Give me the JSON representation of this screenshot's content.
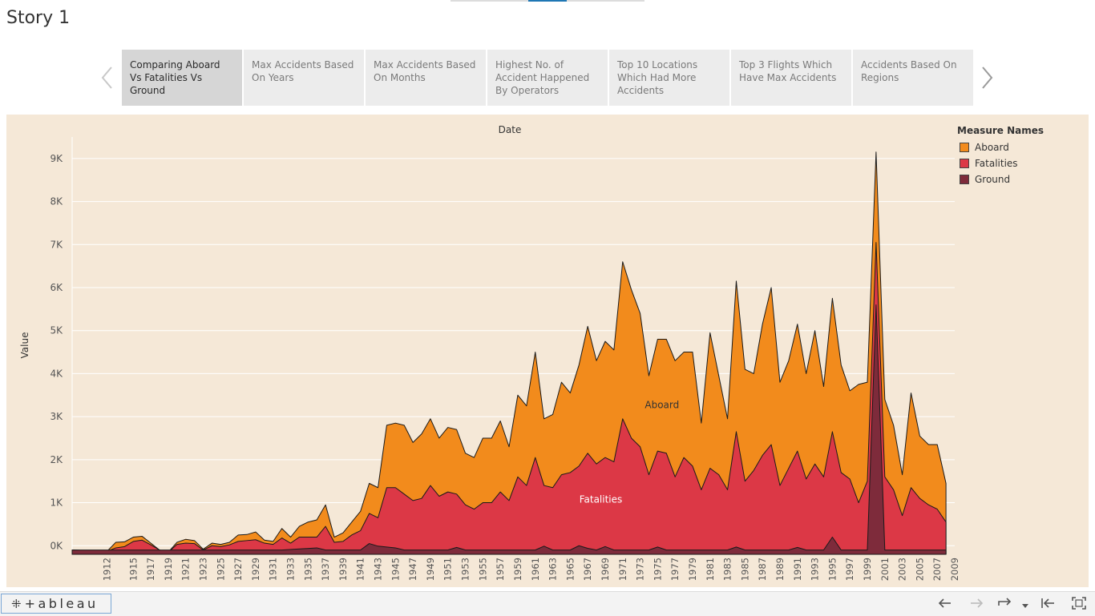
{
  "story": {
    "title": "Story 1",
    "points": [
      "Comparing Aboard Vs Fatalities Vs Ground",
      "Max Accidents Based On Years",
      "Max Accidents Based On Months",
      "Highest No. of Accident Happened  By Operators",
      "Top 10 Locations Which Had More Accidents",
      "Top 3 Flights Which Have Max Accidents",
      "Accidents Based On Regions"
    ],
    "active_index": 0
  },
  "footer": {
    "logo_text": "+ableau",
    "logo_mark": "⁜"
  },
  "chart_data": {
    "type": "area",
    "title": "Date",
    "xlabel": "",
    "ylabel": "Value",
    "xlim": [
      1908,
      2009
    ],
    "ylim": [
      -200,
      9500
    ],
    "y_ticks": [
      0,
      1000,
      2000,
      3000,
      4000,
      5000,
      6000,
      7000,
      8000,
      9000
    ],
    "y_tick_labels": [
      "0K",
      "1K",
      "2K",
      "3K",
      "4K",
      "5K",
      "6K",
      "7K",
      "8K",
      "9K"
    ],
    "x_ticks": [
      1912,
      1915,
      1917,
      1919,
      1921,
      1923,
      1925,
      1927,
      1929,
      1931,
      1933,
      1935,
      1937,
      1939,
      1941,
      1943,
      1945,
      1947,
      1949,
      1951,
      1953,
      1955,
      1957,
      1959,
      1961,
      1963,
      1965,
      1967,
      1969,
      1971,
      1973,
      1975,
      1977,
      1979,
      1981,
      1983,
      1985,
      1987,
      1989,
      1991,
      1993,
      1995,
      1997,
      1999,
      2001,
      2003,
      2005,
      2007,
      2009
    ],
    "legend_title": "Measure Names",
    "legend_position": "top-right",
    "grid": true,
    "series": [
      {
        "name": "Aboard",
        "color": "#f28b1c",
        "label": "Aboard",
        "label_x": 1975.5,
        "label_y": 3200,
        "points": [
          [
            1908,
            -100
          ],
          [
            1912,
            -130
          ],
          [
            1913,
            80
          ],
          [
            1914,
            90
          ],
          [
            1915,
            200
          ],
          [
            1916,
            220
          ],
          [
            1917,
            60
          ],
          [
            1918,
            -100
          ],
          [
            1919,
            -150
          ],
          [
            1920,
            80
          ],
          [
            1921,
            150
          ],
          [
            1922,
            120
          ],
          [
            1923,
            -80
          ],
          [
            1924,
            60
          ],
          [
            1925,
            30
          ],
          [
            1926,
            80
          ],
          [
            1927,
            250
          ],
          [
            1928,
            260
          ],
          [
            1929,
            320
          ],
          [
            1930,
            130
          ],
          [
            1931,
            100
          ],
          [
            1932,
            400
          ],
          [
            1933,
            200
          ],
          [
            1934,
            450
          ],
          [
            1935,
            550
          ],
          [
            1936,
            600
          ],
          [
            1937,
            950
          ],
          [
            1938,
            200
          ],
          [
            1939,
            300
          ],
          [
            1940,
            550
          ],
          [
            1941,
            800
          ],
          [
            1942,
            1450
          ],
          [
            1943,
            1350
          ],
          [
            1944,
            2800
          ],
          [
            1945,
            2850
          ],
          [
            1946,
            2800
          ],
          [
            1947,
            2400
          ],
          [
            1948,
            2600
          ],
          [
            1949,
            2950
          ],
          [
            1950,
            2500
          ],
          [
            1951,
            2750
          ],
          [
            1952,
            2700
          ],
          [
            1953,
            2150
          ],
          [
            1954,
            2050
          ],
          [
            1955,
            2500
          ],
          [
            1956,
            2500
          ],
          [
            1957,
            2900
          ],
          [
            1958,
            2300
          ],
          [
            1959,
            3500
          ],
          [
            1960,
            3250
          ],
          [
            1961,
            4500
          ],
          [
            1962,
            2950
          ],
          [
            1963,
            3050
          ],
          [
            1964,
            3800
          ],
          [
            1965,
            3550
          ],
          [
            1966,
            4200
          ],
          [
            1967,
            5100
          ],
          [
            1968,
            4300
          ],
          [
            1969,
            4750
          ],
          [
            1970,
            4550
          ],
          [
            1971,
            6600
          ],
          [
            1972,
            5950
          ],
          [
            1973,
            5400
          ],
          [
            1974,
            3950
          ],
          [
            1975,
            4800
          ],
          [
            1976,
            4800
          ],
          [
            1977,
            4300
          ],
          [
            1978,
            4500
          ],
          [
            1979,
            4500
          ],
          [
            1980,
            2850
          ],
          [
            1981,
            4950
          ],
          [
            1982,
            3950
          ],
          [
            1983,
            2950
          ],
          [
            1984,
            6150
          ],
          [
            1985,
            4100
          ],
          [
            1986,
            4000
          ],
          [
            1987,
            5150
          ],
          [
            1988,
            6000
          ],
          [
            1989,
            3800
          ],
          [
            1990,
            4300
          ],
          [
            1991,
            5150
          ],
          [
            1992,
            4000
          ],
          [
            1993,
            5000
          ],
          [
            1994,
            3700
          ],
          [
            1995,
            5750
          ],
          [
            1996,
            4200
          ],
          [
            1997,
            3600
          ],
          [
            1998,
            3750
          ],
          [
            1999,
            3800
          ],
          [
            2000,
            9150
          ],
          [
            2001,
            3400
          ],
          [
            2002,
            2800
          ],
          [
            2003,
            1650
          ],
          [
            2004,
            3550
          ],
          [
            2005,
            2550
          ],
          [
            2006,
            2350
          ],
          [
            2007,
            2350
          ],
          [
            2008,
            1450
          ]
        ]
      },
      {
        "name": "Fatalities",
        "color": "#dc3846",
        "label": "Fatalities",
        "label_x": 1968.5,
        "label_y": 1000,
        "points": [
          [
            1908,
            -100
          ],
          [
            1912,
            -130
          ],
          [
            1913,
            -50
          ],
          [
            1914,
            -20
          ],
          [
            1915,
            100
          ],
          [
            1916,
            130
          ],
          [
            1917,
            20
          ],
          [
            1918,
            -100
          ],
          [
            1919,
            -150
          ],
          [
            1920,
            30
          ],
          [
            1921,
            60
          ],
          [
            1922,
            50
          ],
          [
            1923,
            -100
          ],
          [
            1924,
            0
          ],
          [
            1925,
            -20
          ],
          [
            1926,
            20
          ],
          [
            1927,
            100
          ],
          [
            1928,
            120
          ],
          [
            1929,
            140
          ],
          [
            1930,
            60
          ],
          [
            1931,
            30
          ],
          [
            1932,
            180
          ],
          [
            1933,
            60
          ],
          [
            1934,
            200
          ],
          [
            1935,
            200
          ],
          [
            1936,
            200
          ],
          [
            1937,
            450
          ],
          [
            1938,
            80
          ],
          [
            1939,
            100
          ],
          [
            1940,
            250
          ],
          [
            1941,
            350
          ],
          [
            1942,
            750
          ],
          [
            1943,
            650
          ],
          [
            1944,
            1350
          ],
          [
            1945,
            1350
          ],
          [
            1946,
            1200
          ],
          [
            1947,
            1050
          ],
          [
            1948,
            1100
          ],
          [
            1949,
            1400
          ],
          [
            1950,
            1150
          ],
          [
            1951,
            1250
          ],
          [
            1952,
            1200
          ],
          [
            1953,
            950
          ],
          [
            1954,
            850
          ],
          [
            1955,
            1000
          ],
          [
            1956,
            1000
          ],
          [
            1957,
            1250
          ],
          [
            1958,
            1050
          ],
          [
            1959,
            1600
          ],
          [
            1960,
            1400
          ],
          [
            1961,
            2050
          ],
          [
            1962,
            1400
          ],
          [
            1963,
            1350
          ],
          [
            1964,
            1650
          ],
          [
            1965,
            1700
          ],
          [
            1966,
            1850
          ],
          [
            1967,
            2150
          ],
          [
            1968,
            1900
          ],
          [
            1969,
            2050
          ],
          [
            1970,
            1950
          ],
          [
            1971,
            2950
          ],
          [
            1972,
            2500
          ],
          [
            1973,
            2300
          ],
          [
            1974,
            1650
          ],
          [
            1975,
            2200
          ],
          [
            1976,
            2150
          ],
          [
            1977,
            1600
          ],
          [
            1978,
            2050
          ],
          [
            1979,
            1850
          ],
          [
            1980,
            1300
          ],
          [
            1981,
            1800
          ],
          [
            1982,
            1650
          ],
          [
            1983,
            1300
          ],
          [
            1984,
            2650
          ],
          [
            1985,
            1500
          ],
          [
            1986,
            1750
          ],
          [
            1987,
            2100
          ],
          [
            1988,
            2350
          ],
          [
            1989,
            1400
          ],
          [
            1990,
            1800
          ],
          [
            1991,
            2200
          ],
          [
            1992,
            1550
          ],
          [
            1993,
            1900
          ],
          [
            1994,
            1600
          ],
          [
            1995,
            2650
          ],
          [
            1996,
            1700
          ],
          [
            1997,
            1550
          ],
          [
            1998,
            1000
          ],
          [
            1999,
            1500
          ],
          [
            2000,
            7050
          ],
          [
            2001,
            1600
          ],
          [
            2002,
            1300
          ],
          [
            2003,
            700
          ],
          [
            2004,
            1350
          ],
          [
            2005,
            1100
          ],
          [
            2006,
            950
          ],
          [
            2007,
            850
          ],
          [
            2008,
            550
          ]
        ]
      },
      {
        "name": "Ground",
        "color": "#7e2b3b",
        "label": "",
        "points": [
          [
            1908,
            -100
          ],
          [
            1932,
            -100
          ],
          [
            1936,
            -50
          ],
          [
            1937,
            -100
          ],
          [
            1941,
            -100
          ],
          [
            1942,
            50
          ],
          [
            1943,
            -10
          ],
          [
            1944,
            -30
          ],
          [
            1945,
            -50
          ],
          [
            1946,
            -100
          ],
          [
            1951,
            -100
          ],
          [
            1952,
            -40
          ],
          [
            1953,
            -100
          ],
          [
            1961,
            -100
          ],
          [
            1962,
            -10
          ],
          [
            1963,
            -100
          ],
          [
            1965,
            -100
          ],
          [
            1966,
            0
          ],
          [
            1967,
            -60
          ],
          [
            1968,
            -100
          ],
          [
            1969,
            -20
          ],
          [
            1970,
            -100
          ],
          [
            1974,
            -100
          ],
          [
            1975,
            -30
          ],
          [
            1976,
            -100
          ],
          [
            1983,
            -100
          ],
          [
            1984,
            -30
          ],
          [
            1985,
            -100
          ],
          [
            1990,
            -100
          ],
          [
            1991,
            -40
          ],
          [
            1992,
            -100
          ],
          [
            1994,
            -100
          ],
          [
            1995,
            200
          ],
          [
            1996,
            -100
          ],
          [
            1999,
            -100
          ],
          [
            2000,
            5600
          ],
          [
            2001,
            -100
          ],
          [
            2008,
            -100
          ]
        ]
      }
    ]
  }
}
